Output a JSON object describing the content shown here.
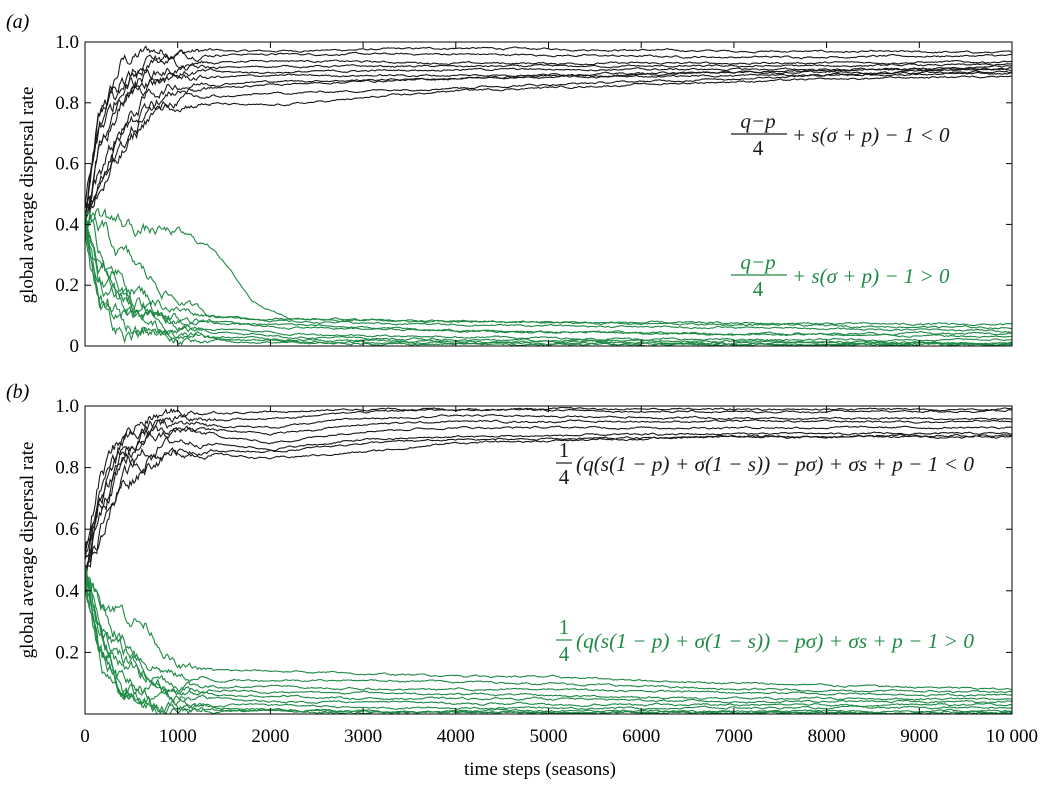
{
  "colors": {
    "high_series": "#1a1a1a",
    "low_series": "#1f8a45",
    "axis": "#000000"
  },
  "shared": {
    "xlabel": "time steps (seasons)",
    "ylabel": "global average dispersal rate"
  },
  "chart_data": [
    {
      "type": "line",
      "panel_label": "(a)",
      "xlim": [
        0,
        10000
      ],
      "ylim": [
        0,
        1.0
      ],
      "x_ticks": [
        "0",
        "1000",
        "2000",
        "3000",
        "4000",
        "5000",
        "6000",
        "7000",
        "8000",
        "9000",
        "10 000"
      ],
      "y_ticks": [
        "0",
        "0.2",
        "0.4",
        "0.6",
        "0.8",
        "1.0"
      ],
      "x_tick_values": [
        0,
        1000,
        2000,
        3000,
        4000,
        5000,
        6000,
        7000,
        8000,
        9000,
        10000
      ],
      "y_tick_values": [
        0,
        0.2,
        0.4,
        0.6,
        0.8,
        1.0
      ],
      "annotations": [
        {
          "text_left": "q−p",
          "text_den": "4",
          "text_right": "+ s(σ + p) − 1 < 0",
          "series_group": "high"
        },
        {
          "text_left": "q−p",
          "text_den": "4",
          "text_right": "+ s(σ + p) − 1 > 0",
          "series_group": "low"
        }
      ],
      "series_high": [
        {
          "x": [
            0,
            150,
            400,
            700,
            1000,
            2000,
            4000,
            7000,
            10000
          ],
          "y": [
            0.42,
            0.72,
            0.93,
            0.97,
            0.97,
            0.97,
            0.98,
            0.97,
            0.965
          ]
        },
        {
          "x": [
            0,
            150,
            400,
            700,
            1000,
            2000,
            4000,
            7000,
            10000
          ],
          "y": [
            0.4,
            0.68,
            0.85,
            0.95,
            0.96,
            0.96,
            0.96,
            0.95,
            0.955
          ]
        },
        {
          "x": [
            0,
            150,
            400,
            700,
            1000,
            2000,
            4000,
            7000,
            10000
          ],
          "y": [
            0.44,
            0.75,
            0.88,
            0.92,
            0.93,
            0.94,
            0.93,
            0.93,
            0.935
          ]
        },
        {
          "x": [
            0,
            150,
            400,
            700,
            1000,
            2000,
            4000,
            7000,
            10000
          ],
          "y": [
            0.38,
            0.7,
            0.86,
            0.9,
            0.91,
            0.92,
            0.92,
            0.92,
            0.925
          ]
        },
        {
          "x": [
            0,
            150,
            400,
            700,
            1000,
            2000,
            4000,
            7000,
            10000
          ],
          "y": [
            0.45,
            0.72,
            0.84,
            0.89,
            0.9,
            0.9,
            0.91,
            0.91,
            0.91
          ]
        },
        {
          "x": [
            0,
            150,
            400,
            700,
            1000,
            2000,
            4000,
            7000,
            10000
          ],
          "y": [
            0.4,
            0.62,
            0.8,
            0.87,
            0.88,
            0.89,
            0.89,
            0.9,
            0.9
          ]
        },
        {
          "x": [
            0,
            150,
            400,
            700,
            1000,
            2000,
            4000,
            7000,
            10000
          ],
          "y": [
            0.43,
            0.58,
            0.72,
            0.83,
            0.86,
            0.87,
            0.88,
            0.89,
            0.895
          ]
        },
        {
          "x": [
            0,
            150,
            400,
            700,
            1000,
            2000,
            4000,
            7000,
            10000
          ],
          "y": [
            0.41,
            0.55,
            0.7,
            0.8,
            0.84,
            0.86,
            0.88,
            0.9,
            0.92
          ]
        },
        {
          "x": [
            0,
            150,
            400,
            700,
            1000,
            2000,
            4000,
            7000,
            10000
          ],
          "y": [
            0.39,
            0.52,
            0.66,
            0.78,
            0.8,
            0.79,
            0.84,
            0.87,
            0.89
          ]
        },
        {
          "x": [
            0,
            150,
            400,
            700,
            1000,
            2000,
            4000,
            7000,
            10000
          ],
          "y": [
            0.44,
            0.5,
            0.62,
            0.76,
            0.81,
            0.83,
            0.85,
            0.88,
            0.915
          ]
        }
      ],
      "series_low": [
        {
          "x": [
            0,
            150,
            400,
            700,
            1000,
            1400,
            1800,
            2200,
            4000,
            7000,
            10000
          ],
          "y": [
            0.4,
            0.44,
            0.4,
            0.38,
            0.37,
            0.32,
            0.15,
            0.09,
            0.08,
            0.075,
            0.07
          ]
        },
        {
          "x": [
            0,
            150,
            400,
            700,
            1000,
            1400,
            1800,
            2200,
            4000,
            7000,
            10000
          ],
          "y": [
            0.42,
            0.38,
            0.3,
            0.22,
            0.15,
            0.1,
            0.09,
            0.09,
            0.08,
            0.07,
            0.06
          ]
        },
        {
          "x": [
            0,
            150,
            400,
            700,
            1000,
            1400,
            1800,
            2200,
            4000,
            7000,
            10000
          ],
          "y": [
            0.4,
            0.32,
            0.22,
            0.16,
            0.12,
            0.1,
            0.09,
            0.08,
            0.07,
            0.06,
            0.05
          ]
        },
        {
          "x": [
            0,
            150,
            400,
            700,
            1000,
            1400,
            1800,
            2200,
            4000,
            7000,
            10000
          ],
          "y": [
            0.38,
            0.28,
            0.18,
            0.12,
            0.09,
            0.08,
            0.07,
            0.07,
            0.05,
            0.04,
            0.03
          ]
        },
        {
          "x": [
            0,
            150,
            400,
            700,
            1000,
            1400,
            1800,
            2200,
            4000,
            7000,
            10000
          ],
          "y": [
            0.41,
            0.25,
            0.15,
            0.1,
            0.07,
            0.06,
            0.05,
            0.04,
            0.03,
            0.02,
            0.02
          ]
        },
        {
          "x": [
            0,
            150,
            400,
            700,
            1000,
            1400,
            1800,
            2200,
            4000,
            7000,
            10000
          ],
          "y": [
            0.39,
            0.22,
            0.12,
            0.08,
            0.06,
            0.05,
            0.04,
            0.03,
            0.02,
            0.015,
            0.01
          ]
        },
        {
          "x": [
            0,
            150,
            400,
            700,
            1000,
            1400,
            1800,
            2200,
            4000,
            7000,
            10000
          ],
          "y": [
            0.43,
            0.18,
            0.1,
            0.06,
            0.04,
            0.03,
            0.03,
            0.02,
            0.015,
            0.01,
            0.01
          ]
        },
        {
          "x": [
            0,
            150,
            400,
            700,
            1000,
            1400,
            1800,
            2200,
            4000,
            7000,
            10000
          ],
          "y": [
            0.4,
            0.15,
            0.08,
            0.05,
            0.03,
            0.02,
            0.02,
            0.015,
            0.01,
            0.005,
            0.005
          ]
        },
        {
          "x": [
            0,
            150,
            400,
            700,
            1000,
            1400,
            1800,
            2200,
            4000,
            7000,
            10000
          ],
          "y": [
            0.37,
            0.12,
            0.06,
            0.04,
            0.02,
            0.015,
            0.01,
            0.01,
            0.005,
            0.005,
            0.003
          ]
        },
        {
          "x": [
            0,
            150,
            400,
            700,
            1000,
            1400,
            1800,
            2200,
            4000,
            7000,
            10000
          ],
          "y": [
            0.42,
            0.2,
            0.14,
            0.11,
            0.09,
            0.08,
            0.07,
            0.06,
            0.05,
            0.04,
            0.04
          ]
        }
      ]
    },
    {
      "type": "line",
      "panel_label": "(b)",
      "xlim": [
        0,
        10000
      ],
      "ylim": [
        0,
        1.0
      ],
      "x_ticks": [
        "0",
        "1000",
        "2000",
        "3000",
        "4000",
        "5000",
        "6000",
        "7000",
        "8000",
        "9000",
        "10 000"
      ],
      "y_ticks": [
        "0.2",
        "0.4",
        "0.6",
        "0.8",
        "1.0"
      ],
      "x_tick_values": [
        0,
        1000,
        2000,
        3000,
        4000,
        5000,
        6000,
        7000,
        8000,
        9000,
        10000
      ],
      "y_tick_values": [
        0.2,
        0.4,
        0.6,
        0.8,
        1.0
      ],
      "annotations": [
        {
          "frac_num": "1",
          "frac_den": "4",
          "text_right": "(q(s(1 − p) + σ(1 − s)) − pσ) + σs + p − 1 < 0",
          "series_group": "high"
        },
        {
          "frac_num": "1",
          "frac_den": "4",
          "text_right": "(q(s(1 − p) + σ(1 − s)) − pσ) + σs + p − 1 > 0",
          "series_group": "low"
        }
      ],
      "series_high": [
        {
          "x": [
            0,
            150,
            400,
            700,
            1000,
            2000,
            3000,
            4000,
            7000,
            10000
          ],
          "y": [
            0.5,
            0.75,
            0.9,
            0.96,
            0.98,
            0.98,
            0.99,
            0.99,
            0.99,
            0.99
          ]
        },
        {
          "x": [
            0,
            150,
            400,
            700,
            1000,
            2000,
            3000,
            4000,
            7000,
            10000
          ],
          "y": [
            0.48,
            0.72,
            0.88,
            0.93,
            0.95,
            0.96,
            0.98,
            0.99,
            0.98,
            0.985
          ]
        },
        {
          "x": [
            0,
            150,
            400,
            700,
            1000,
            2000,
            3000,
            4000,
            7000,
            10000
          ],
          "y": [
            0.47,
            0.7,
            0.85,
            0.92,
            0.94,
            0.93,
            0.96,
            0.97,
            0.96,
            0.96
          ]
        },
        {
          "x": [
            0,
            150,
            400,
            700,
            1000,
            2000,
            3000,
            4000,
            7000,
            10000
          ],
          "y": [
            0.46,
            0.68,
            0.83,
            0.9,
            0.93,
            0.91,
            0.94,
            0.95,
            0.95,
            0.95
          ]
        },
        {
          "x": [
            0,
            150,
            400,
            700,
            1000,
            2000,
            3000,
            4000,
            7000,
            10000
          ],
          "y": [
            0.49,
            0.65,
            0.82,
            0.89,
            0.92,
            0.88,
            0.92,
            0.93,
            0.93,
            0.93
          ]
        },
        {
          "x": [
            0,
            150,
            400,
            700,
            1000,
            2000,
            3000,
            4000,
            7000,
            10000
          ],
          "y": [
            0.45,
            0.62,
            0.8,
            0.86,
            0.89,
            0.86,
            0.89,
            0.9,
            0.91,
            0.91
          ]
        },
        {
          "x": [
            0,
            150,
            400,
            700,
            1000,
            2000,
            3000,
            4000,
            7000,
            10000
          ],
          "y": [
            0.48,
            0.6,
            0.76,
            0.84,
            0.86,
            0.85,
            0.88,
            0.89,
            0.9,
            0.905
          ]
        },
        {
          "x": [
            0,
            150,
            400,
            700,
            1000,
            2000,
            3000,
            4000,
            7000,
            10000
          ],
          "y": [
            0.46,
            0.58,
            0.74,
            0.82,
            0.85,
            0.83,
            0.85,
            0.88,
            0.9,
            0.9
          ]
        }
      ],
      "series_low": [
        {
          "x": [
            0,
            150,
            400,
            700,
            1000,
            1400,
            2000,
            3000,
            5000,
            7000,
            10000
          ],
          "y": [
            0.46,
            0.4,
            0.34,
            0.28,
            0.15,
            0.14,
            0.14,
            0.13,
            0.12,
            0.1,
            0.08
          ]
        },
        {
          "x": [
            0,
            150,
            400,
            700,
            1000,
            1400,
            2000,
            3000,
            5000,
            7000,
            10000
          ],
          "y": [
            0.45,
            0.36,
            0.25,
            0.17,
            0.12,
            0.11,
            0.11,
            0.11,
            0.1,
            0.08,
            0.07
          ]
        },
        {
          "x": [
            0,
            150,
            400,
            700,
            1000,
            1400,
            2000,
            3000,
            5000,
            7000,
            10000
          ],
          "y": [
            0.44,
            0.33,
            0.22,
            0.14,
            0.1,
            0.09,
            0.09,
            0.08,
            0.08,
            0.07,
            0.06
          ]
        },
        {
          "x": [
            0,
            150,
            400,
            700,
            1000,
            1400,
            2000,
            3000,
            5000,
            7000,
            10000
          ],
          "y": [
            0.46,
            0.3,
            0.18,
            0.11,
            0.08,
            0.08,
            0.07,
            0.07,
            0.06,
            0.05,
            0.05
          ]
        },
        {
          "x": [
            0,
            150,
            400,
            700,
            1000,
            1400,
            2000,
            3000,
            5000,
            7000,
            10000
          ],
          "y": [
            0.43,
            0.27,
            0.15,
            0.09,
            0.07,
            0.06,
            0.06,
            0.05,
            0.05,
            0.04,
            0.04
          ]
        },
        {
          "x": [
            0,
            150,
            400,
            700,
            1000,
            1400,
            2000,
            3000,
            5000,
            7000,
            10000
          ],
          "y": [
            0.45,
            0.25,
            0.12,
            0.07,
            0.05,
            0.05,
            0.04,
            0.04,
            0.03,
            0.03,
            0.03
          ]
        },
        {
          "x": [
            0,
            150,
            400,
            700,
            1000,
            1400,
            2000,
            3000,
            5000,
            7000,
            10000
          ],
          "y": [
            0.44,
            0.22,
            0.1,
            0.05,
            0.04,
            0.03,
            0.03,
            0.02,
            0.02,
            0.02,
            0.02
          ]
        },
        {
          "x": [
            0,
            150,
            400,
            700,
            1000,
            1400,
            2000,
            3000,
            5000,
            7000,
            10000
          ],
          "y": [
            0.42,
            0.2,
            0.08,
            0.04,
            0.03,
            0.02,
            0.015,
            0.01,
            0.01,
            0.01,
            0.01
          ]
        },
        {
          "x": [
            0,
            150,
            400,
            700,
            1000,
            1400,
            2000,
            3000,
            5000,
            7000,
            10000
          ],
          "y": [
            0.41,
            0.18,
            0.06,
            0.03,
            0.02,
            0.015,
            0.01,
            0.008,
            0.006,
            0.005,
            0.005
          ]
        },
        {
          "x": [
            0,
            150,
            400,
            700,
            1000,
            1400,
            2000,
            3000,
            5000,
            7000,
            10000
          ],
          "y": [
            0.44,
            0.16,
            0.05,
            0.02,
            0.012,
            0.01,
            0.008,
            0.006,
            0.005,
            0.004,
            0.003
          ]
        }
      ]
    }
  ]
}
